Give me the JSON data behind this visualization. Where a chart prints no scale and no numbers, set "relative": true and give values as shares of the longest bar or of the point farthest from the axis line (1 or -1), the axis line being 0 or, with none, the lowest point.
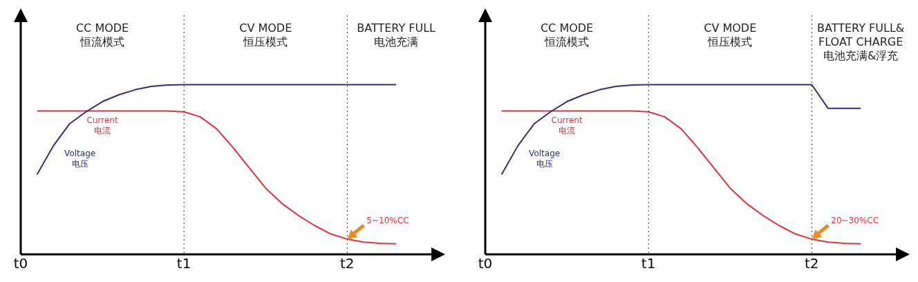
{
  "chart_data": [
    {
      "type": "line",
      "relative": true,
      "categories": [
        "t0",
        null,
        null,
        null,
        null,
        null,
        null,
        null,
        null,
        null,
        "t1",
        null,
        null,
        null,
        null,
        null,
        null,
        null,
        null,
        null,
        "t2",
        null,
        null,
        null,
        null,
        null,
        null
      ],
      "line_style": "solid",
      "marker": "none",
      "grid": false,
      "legend": false,
      "ref_lines": [
        {
          "axis": "x",
          "value": "t1",
          "line_style": "dotted",
          "color": "#333333"
        },
        {
          "axis": "x",
          "value": "t2",
          "line_style": "dotted",
          "color": "#333333"
        }
      ],
      "annotations": [
        "CC MODE\n恒流模式",
        "CV MODE\n恒压模式",
        "BATTERY FULL\n电池充满",
        {
          "text": "5~10%CC",
          "x": "t2",
          "y": 0.09
        }
      ],
      "series": [
        {
          "name": "Voltage\n电压",
          "color": "#2f2d7c",
          "values": [
            null,
            0.47,
            0.64,
            0.77,
            0.84,
            0.9,
            0.94,
            0.97,
            0.99,
            0.998,
            1,
            1,
            1,
            1,
            1,
            1,
            1,
            1,
            1,
            1,
            1,
            1,
            1,
            1,
            null,
            null,
            null
          ]
        },
        {
          "name": "Current\n电流",
          "color": "#e8303a",
          "values": [
            null,
            0.845,
            0.845,
            0.845,
            0.845,
            0.845,
            0.845,
            0.845,
            0.845,
            0.845,
            0.84,
            0.81,
            0.74,
            0.63,
            0.51,
            0.39,
            0.3,
            0.23,
            0.17,
            0.12,
            0.09,
            0.072,
            0.065,
            0.062,
            null,
            null,
            null
          ]
        }
      ]
    },
    {
      "type": "line",
      "relative": true,
      "categories": [
        "t0",
        null,
        null,
        null,
        null,
        null,
        null,
        null,
        null,
        null,
        "t1",
        null,
        null,
        null,
        null,
        null,
        null,
        null,
        null,
        null,
        "t2",
        null,
        null,
        null,
        null,
        null,
        null
      ],
      "line_style": "solid",
      "marker": "none",
      "grid": false,
      "legend": false,
      "ref_lines": [
        {
          "axis": "x",
          "value": "t1",
          "line_style": "dotted",
          "color": "#333333"
        },
        {
          "axis": "x",
          "value": "t2",
          "line_style": "dotted",
          "color": "#333333"
        }
      ],
      "annotations": [
        "CC MODE\n恒流模式",
        "CV MODE\n恒压模式",
        "BATTERY FULL&\nFLOAT CHARGE\n电池充满&浮充",
        {
          "text": "20~30%CC",
          "x": "t2",
          "y": 0.09
        }
      ],
      "series": [
        {
          "name": "Voltage\n电压",
          "color": "#2f2d7c",
          "values": [
            null,
            0.47,
            0.64,
            0.77,
            0.84,
            0.9,
            0.94,
            0.97,
            0.99,
            0.998,
            1,
            1,
            1,
            1,
            1,
            1,
            1,
            1,
            1,
            1,
            1,
            0.86,
            0.86,
            0.86,
            null,
            null,
            null
          ]
        },
        {
          "name": "Current\n电流",
          "color": "#e8303a",
          "values": [
            null,
            0.845,
            0.845,
            0.845,
            0.845,
            0.845,
            0.845,
            0.845,
            0.845,
            0.845,
            0.84,
            0.81,
            0.74,
            0.63,
            0.51,
            0.39,
            0.3,
            0.23,
            0.17,
            0.12,
            0.09,
            0.072,
            0.065,
            0.062,
            null,
            null,
            null
          ]
        }
      ]
    }
  ]
}
